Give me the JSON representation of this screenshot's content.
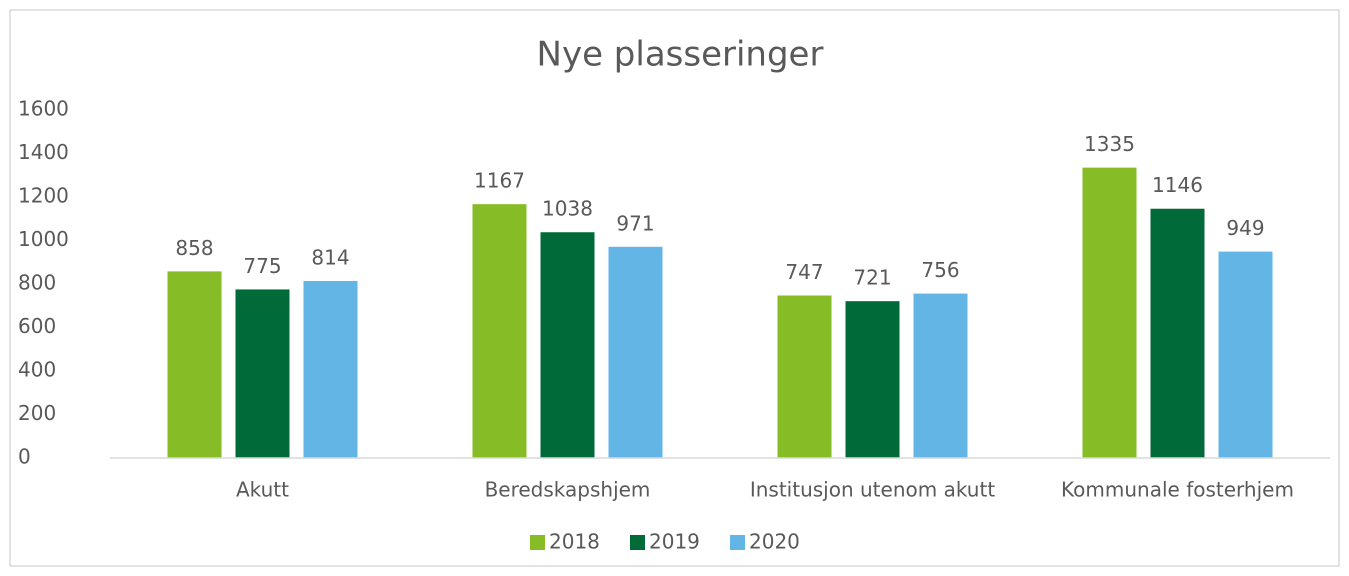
{
  "chart_data": {
    "type": "bar",
    "title": "Nye plasseringer",
    "categories": [
      "Akutt",
      "Beredskapshjem",
      "Institusjon utenom akutt",
      "Kommunale fosterhjem"
    ],
    "series": [
      {
        "name": "2018",
        "color": "#86bc25",
        "values": [
          858,
          1167,
          747,
          1335
        ]
      },
      {
        "name": "2019",
        "color": "#006a38",
        "values": [
          775,
          1038,
          721,
          1146
        ]
      },
      {
        "name": "2020",
        "color": "#62b5e5",
        "values": [
          814,
          971,
          756,
          949
        ]
      }
    ],
    "ylim": [
      0,
      1600
    ],
    "yticks": [
      0,
      200,
      400,
      600,
      800,
      1000,
      1200,
      1400,
      1600
    ],
    "grid": false,
    "legend": "bottom"
  }
}
